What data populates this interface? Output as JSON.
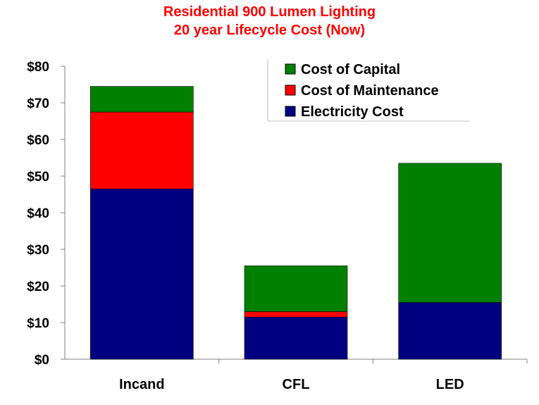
{
  "chart_data": {
    "type": "bar",
    "stacked": true,
    "title": [
      "Residential 900 Lumen Lighting",
      "20 year Lifecycle Cost (Now)"
    ],
    "categories": [
      "Incand",
      "CFL",
      "LED"
    ],
    "series": [
      {
        "name": "Electricity Cost",
        "color": "#000080",
        "values": [
          46.5,
          11.5,
          15.5
        ]
      },
      {
        "name": "Cost of Maintenance",
        "color": "#ff0000",
        "values": [
          21,
          1.5,
          0
        ]
      },
      {
        "name": "Cost of Capital",
        "color": "#008000",
        "values": [
          7,
          12.5,
          38
        ]
      }
    ],
    "legend_order": [
      "Cost of Capital",
      "Cost of Maintenance",
      "Electricity Cost"
    ],
    "legend_position": "top-right",
    "ylim": [
      0,
      80
    ],
    "yticks": [
      "$0",
      "$10",
      "$20",
      "$30",
      "$40",
      "$50",
      "$60",
      "$70",
      "$80"
    ],
    "ytick_values": [
      0,
      10,
      20,
      30,
      40,
      50,
      60,
      70,
      80
    ],
    "xlabel": "",
    "ylabel": "",
    "grid": false
  }
}
